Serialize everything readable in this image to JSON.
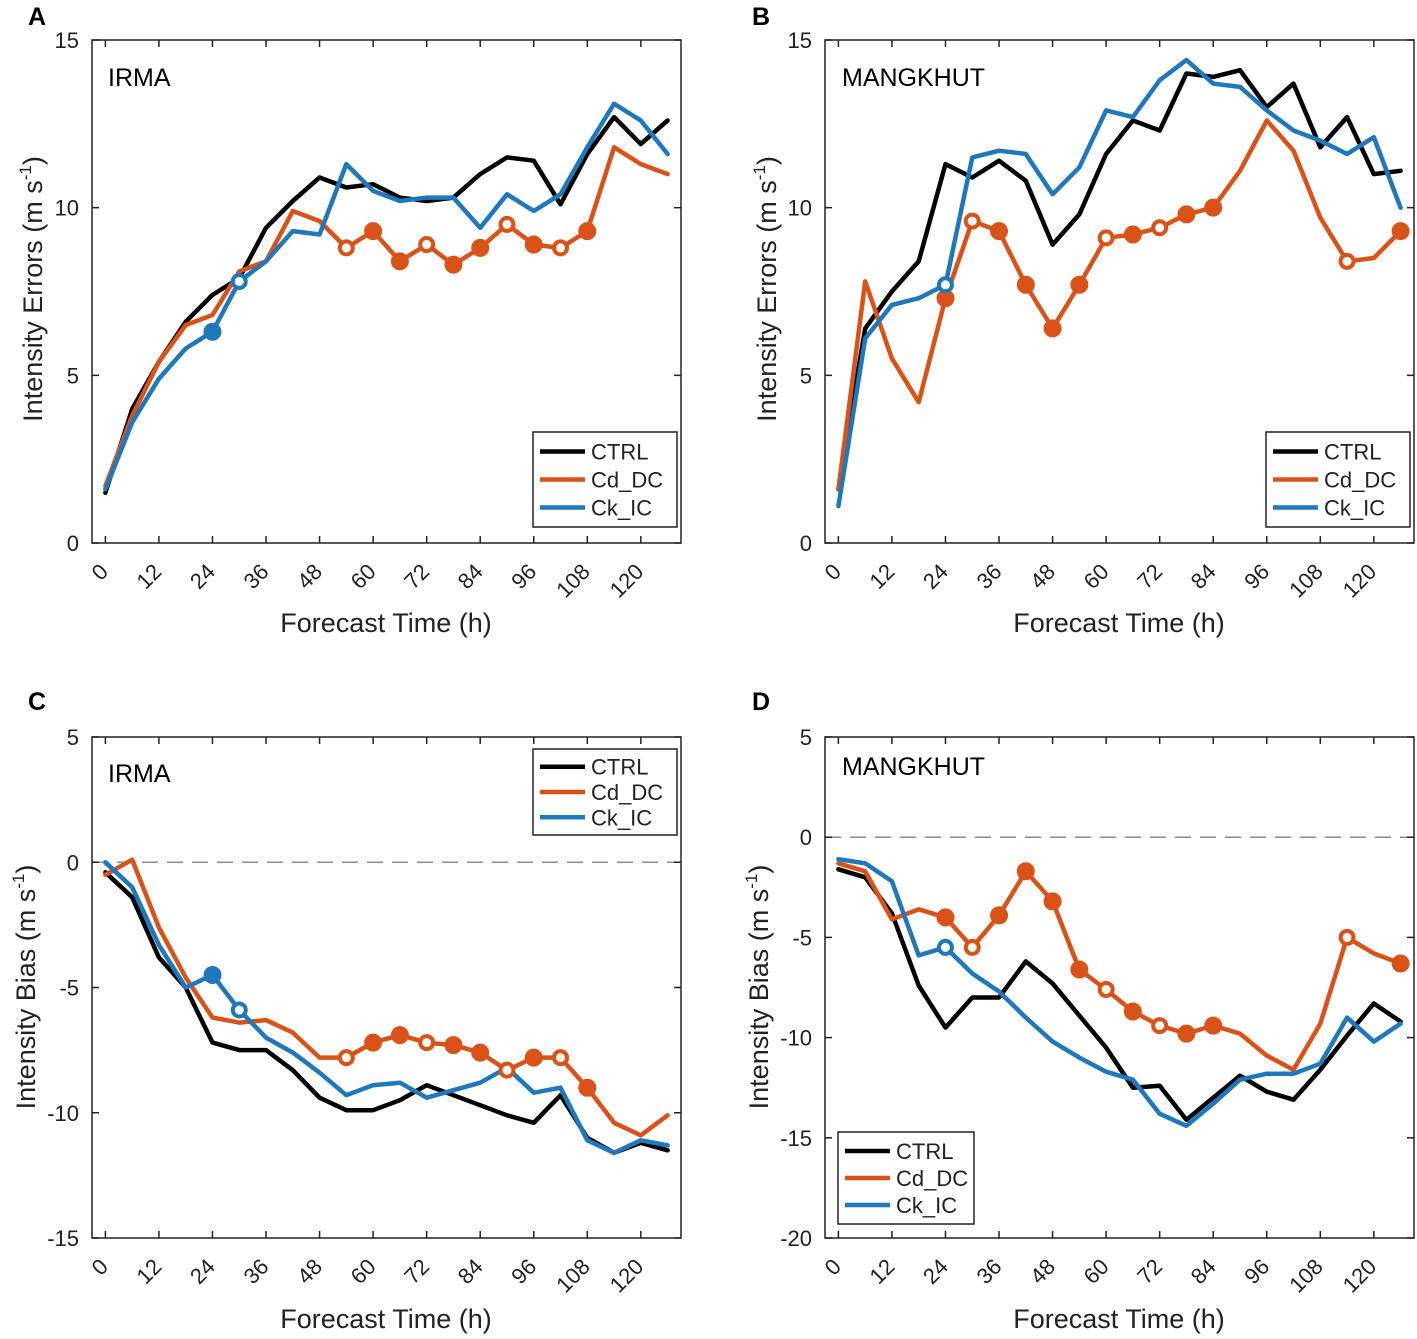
{
  "colors": {
    "CTRL": "#000000",
    "Cd_DC": "#d95319",
    "Ck_IC": "#1f77bc",
    "zero_line": "#8c8c8c"
  },
  "chart_data": [
    {
      "type": "line",
      "panel_letter": "A",
      "storm": "IRMA",
      "xlabel": "Forecast Time (h)",
      "ylabel": "Intensity Errors (m s",
      "ylabel_sup": "-1",
      "ylabel_close": ")",
      "xlim": [
        -3,
        129
      ],
      "ylim": [
        0,
        15
      ],
      "xticks": [
        0,
        12,
        24,
        36,
        48,
        60,
        72,
        84,
        96,
        108,
        120
      ],
      "yticks": [
        0,
        5,
        10,
        15
      ],
      "zero_line": false,
      "legend_position": "bottom-right",
      "series": [
        {
          "name": "CTRL",
          "x": [
            0,
            6,
            12,
            18,
            24,
            30,
            36,
            42,
            48,
            54,
            60,
            66,
            72,
            78,
            84,
            90,
            96,
            102,
            108,
            114,
            120,
            126
          ],
          "values": [
            1.5,
            4.0,
            5.4,
            6.6,
            7.4,
            7.9,
            9.4,
            10.2,
            10.9,
            10.6,
            10.7,
            10.3,
            10.2,
            10.3,
            11.0,
            11.5,
            11.4,
            10.1,
            11.6,
            12.7,
            11.9,
            12.6
          ]
        },
        {
          "name": "Cd_DC",
          "x": [
            0,
            6,
            12,
            18,
            24,
            30,
            36,
            42,
            48,
            54,
            60,
            66,
            72,
            78,
            84,
            90,
            96,
            102,
            108,
            114,
            120,
            126
          ],
          "values": [
            1.7,
            3.8,
            5.4,
            6.5,
            6.8,
            8.1,
            8.4,
            9.9,
            9.6,
            8.8,
            9.3,
            8.4,
            8.9,
            8.3,
            8.8,
            9.5,
            8.9,
            8.8,
            9.3,
            11.8,
            11.3,
            11.0
          ],
          "markers": [
            {
              "x": 54,
              "y": 8.8,
              "filled": false
            },
            {
              "x": 60,
              "y": 9.3,
              "filled": true
            },
            {
              "x": 66,
              "y": 8.4,
              "filled": true
            },
            {
              "x": 72,
              "y": 8.9,
              "filled": false
            },
            {
              "x": 78,
              "y": 8.3,
              "filled": true
            },
            {
              "x": 84,
              "y": 8.8,
              "filled": true
            },
            {
              "x": 90,
              "y": 9.5,
              "filled": false
            },
            {
              "x": 96,
              "y": 8.9,
              "filled": true
            },
            {
              "x": 102,
              "y": 8.8,
              "filled": false
            },
            {
              "x": 108,
              "y": 9.3,
              "filled": true
            }
          ]
        },
        {
          "name": "Ck_IC",
          "x": [
            0,
            6,
            12,
            18,
            24,
            30,
            36,
            42,
            48,
            54,
            60,
            66,
            72,
            78,
            84,
            90,
            96,
            102,
            108,
            114,
            120,
            126
          ],
          "values": [
            1.6,
            3.6,
            4.9,
            5.8,
            6.3,
            7.8,
            8.4,
            9.3,
            9.2,
            11.3,
            10.5,
            10.2,
            10.3,
            10.3,
            9.4,
            10.4,
            9.9,
            10.4,
            11.8,
            13.1,
            12.6,
            11.6
          ],
          "markers": [
            {
              "x": 24,
              "y": 6.3,
              "filled": true
            },
            {
              "x": 30,
              "y": 7.8,
              "filled": false
            }
          ]
        }
      ]
    },
    {
      "type": "line",
      "panel_letter": "B",
      "storm": "MANGKHUT",
      "xlabel": "Forecast Time (h)",
      "ylabel": "Intensity Errors (m s",
      "ylabel_sup": "-1",
      "ylabel_close": ")",
      "xlim": [
        -3,
        129
      ],
      "ylim": [
        0,
        15
      ],
      "xticks": [
        0,
        12,
        24,
        36,
        48,
        60,
        72,
        84,
        96,
        108,
        120
      ],
      "yticks": [
        0,
        5,
        10,
        15
      ],
      "zero_line": false,
      "legend_position": "bottom-right",
      "series": [
        {
          "name": "CTRL",
          "x": [
            0,
            6,
            12,
            18,
            24,
            30,
            36,
            42,
            48,
            54,
            60,
            66,
            72,
            78,
            84,
            90,
            96,
            102,
            108,
            114,
            120,
            126
          ],
          "values": [
            1.6,
            6.4,
            7.5,
            8.4,
            11.3,
            10.9,
            11.4,
            10.8,
            8.9,
            9.8,
            11.6,
            12.6,
            12.3,
            14.0,
            13.9,
            14.1,
            13.0,
            13.7,
            11.8,
            12.7,
            11.0,
            11.1
          ]
        },
        {
          "name": "Cd_DC",
          "x": [
            0,
            6,
            12,
            18,
            24,
            30,
            36,
            42,
            48,
            54,
            60,
            66,
            72,
            78,
            84,
            90,
            96,
            102,
            108,
            114,
            120,
            126
          ],
          "values": [
            1.6,
            7.8,
            5.5,
            4.2,
            7.3,
            9.6,
            9.3,
            7.7,
            6.4,
            7.7,
            9.1,
            9.2,
            9.4,
            9.8,
            10.0,
            11.1,
            12.6,
            11.7,
            9.7,
            8.4,
            8.5,
            9.3
          ],
          "markers": [
            {
              "x": 24,
              "y": 7.3,
              "filled": true
            },
            {
              "x": 30,
              "y": 9.6,
              "filled": false
            },
            {
              "x": 36,
              "y": 9.3,
              "filled": true
            },
            {
              "x": 42,
              "y": 7.7,
              "filled": true
            },
            {
              "x": 48,
              "y": 6.4,
              "filled": true
            },
            {
              "x": 54,
              "y": 7.7,
              "filled": true
            },
            {
              "x": 60,
              "y": 9.1,
              "filled": false
            },
            {
              "x": 66,
              "y": 9.2,
              "filled": true
            },
            {
              "x": 72,
              "y": 9.4,
              "filled": false
            },
            {
              "x": 78,
              "y": 9.8,
              "filled": true
            },
            {
              "x": 84,
              "y": 10.0,
              "filled": true
            },
            {
              "x": 114,
              "y": 8.4,
              "filled": false
            },
            {
              "x": 126,
              "y": 9.3,
              "filled": true
            }
          ]
        },
        {
          "name": "Ck_IC",
          "x": [
            0,
            6,
            12,
            18,
            24,
            30,
            36,
            42,
            48,
            54,
            60,
            66,
            72,
            78,
            84,
            90,
            96,
            102,
            108,
            114,
            120,
            126
          ],
          "values": [
            1.1,
            6.1,
            7.1,
            7.3,
            7.7,
            11.5,
            11.7,
            11.6,
            10.4,
            11.2,
            12.9,
            12.7,
            13.8,
            14.4,
            13.7,
            13.6,
            12.9,
            12.3,
            12.0,
            11.6,
            12.1,
            10.0
          ],
          "markers": [
            {
              "x": 24,
              "y": 7.7,
              "filled": false
            }
          ]
        }
      ]
    },
    {
      "type": "line",
      "panel_letter": "C",
      "storm": "IRMA",
      "xlabel": "Forecast Time (h)",
      "ylabel": "Intensity Bias (m s",
      "ylabel_sup": "-1",
      "ylabel_close": ")",
      "xlim": [
        -3,
        129
      ],
      "ylim": [
        -15,
        5
      ],
      "xticks": [
        0,
        12,
        24,
        36,
        48,
        60,
        72,
        84,
        96,
        108,
        120
      ],
      "yticks": [
        -15,
        -10,
        -5,
        0,
        5
      ],
      "zero_line": true,
      "legend_position": "top-right",
      "series": [
        {
          "name": "CTRL",
          "x": [
            0,
            6,
            12,
            18,
            24,
            30,
            36,
            42,
            48,
            54,
            60,
            66,
            72,
            78,
            84,
            90,
            96,
            102,
            108,
            114,
            120,
            126
          ],
          "values": [
            -0.4,
            -1.4,
            -3.8,
            -5.0,
            -7.2,
            -7.5,
            -7.5,
            -8.3,
            -9.4,
            -9.9,
            -9.9,
            -9.5,
            -8.9,
            -9.3,
            -9.7,
            -10.1,
            -10.4,
            -9.3,
            -11.0,
            -11.6,
            -11.2,
            -11.5
          ]
        },
        {
          "name": "Cd_DC",
          "x": [
            0,
            6,
            12,
            18,
            24,
            30,
            36,
            42,
            48,
            54,
            60,
            66,
            72,
            78,
            84,
            90,
            96,
            102,
            108,
            114,
            120,
            126
          ],
          "values": [
            -0.5,
            0.1,
            -2.6,
            -4.6,
            -6.2,
            -6.4,
            -6.3,
            -6.8,
            -7.8,
            -7.8,
            -7.2,
            -6.9,
            -7.2,
            -7.3,
            -7.6,
            -8.3,
            -7.8,
            -7.8,
            -9.0,
            -10.4,
            -10.9,
            -10.1
          ],
          "markers": [
            {
              "x": 54,
              "y": -7.8,
              "filled": false
            },
            {
              "x": 60,
              "y": -7.2,
              "filled": true
            },
            {
              "x": 66,
              "y": -6.9,
              "filled": true
            },
            {
              "x": 72,
              "y": -7.2,
              "filled": false
            },
            {
              "x": 78,
              "y": -7.3,
              "filled": true
            },
            {
              "x": 84,
              "y": -7.6,
              "filled": true
            },
            {
              "x": 90,
              "y": -8.3,
              "filled": false
            },
            {
              "x": 96,
              "y": -7.8,
              "filled": true
            },
            {
              "x": 102,
              "y": -7.8,
              "filled": false
            },
            {
              "x": 108,
              "y": -9.0,
              "filled": true
            }
          ]
        },
        {
          "name": "Ck_IC",
          "x": [
            0,
            6,
            12,
            18,
            24,
            30,
            36,
            42,
            48,
            54,
            60,
            66,
            72,
            78,
            84,
            90,
            96,
            102,
            108,
            114,
            120,
            126
          ],
          "values": [
            0.0,
            -1.0,
            -3.3,
            -5.0,
            -4.5,
            -5.9,
            -7.0,
            -7.6,
            -8.4,
            -9.3,
            -8.9,
            -8.8,
            -9.4,
            -9.1,
            -8.8,
            -8.2,
            -9.2,
            -9.0,
            -11.1,
            -11.6,
            -11.1,
            -11.3
          ],
          "markers": [
            {
              "x": 24,
              "y": -4.5,
              "filled": true
            },
            {
              "x": 30,
              "y": -5.9,
              "filled": false
            }
          ]
        }
      ]
    },
    {
      "type": "line",
      "panel_letter": "D",
      "storm": "MANGKHUT",
      "xlabel": "Forecast Time (h)",
      "ylabel": "Intensity Bias (m s",
      "ylabel_sup": "-1",
      "ylabel_close": ")",
      "xlim": [
        -3,
        129
      ],
      "ylim": [
        -20,
        5
      ],
      "xticks": [
        0,
        12,
        24,
        36,
        48,
        60,
        72,
        84,
        96,
        108,
        120
      ],
      "yticks": [
        -20,
        -15,
        -10,
        -5,
        0,
        5
      ],
      "zero_line": true,
      "legend_position": "bottom-left",
      "series": [
        {
          "name": "CTRL",
          "x": [
            0,
            6,
            12,
            18,
            24,
            30,
            36,
            42,
            48,
            54,
            60,
            66,
            72,
            78,
            84,
            90,
            96,
            102,
            108,
            114,
            120,
            126
          ],
          "values": [
            -1.6,
            -2.0,
            -3.8,
            -7.4,
            -9.5,
            -8.0,
            -8.0,
            -6.2,
            -7.3,
            -8.9,
            -10.5,
            -12.5,
            -12.4,
            -14.1,
            -13.0,
            -11.9,
            -12.7,
            -13.1,
            -11.6,
            -9.9,
            -8.3,
            -9.2
          ]
        },
        {
          "name": "Cd_DC",
          "x": [
            0,
            6,
            12,
            18,
            24,
            30,
            36,
            42,
            48,
            54,
            60,
            66,
            72,
            78,
            84,
            90,
            96,
            102,
            108,
            114,
            120,
            126
          ],
          "values": [
            -1.3,
            -1.7,
            -4.1,
            -3.6,
            -4.0,
            -5.5,
            -3.9,
            -1.7,
            -3.2,
            -6.6,
            -7.6,
            -8.7,
            -9.4,
            -9.8,
            -9.4,
            -9.8,
            -10.9,
            -11.6,
            -9.3,
            -5.0,
            -5.8,
            -6.3
          ],
          "markers": [
            {
              "x": 24,
              "y": -4.0,
              "filled": true
            },
            {
              "x": 30,
              "y": -5.5,
              "filled": false
            },
            {
              "x": 36,
              "y": -3.9,
              "filled": true
            },
            {
              "x": 42,
              "y": -1.7,
              "filled": true
            },
            {
              "x": 48,
              "y": -3.2,
              "filled": true
            },
            {
              "x": 54,
              "y": -6.6,
              "filled": true
            },
            {
              "x": 60,
              "y": -7.6,
              "filled": false
            },
            {
              "x": 66,
              "y": -8.7,
              "filled": true
            },
            {
              "x": 72,
              "y": -9.4,
              "filled": false
            },
            {
              "x": 78,
              "y": -9.8,
              "filled": true
            },
            {
              "x": 84,
              "y": -9.4,
              "filled": true
            },
            {
              "x": 114,
              "y": -5.0,
              "filled": false
            },
            {
              "x": 126,
              "y": -6.3,
              "filled": true
            }
          ]
        },
        {
          "name": "Ck_IC",
          "x": [
            0,
            6,
            12,
            18,
            24,
            30,
            36,
            42,
            48,
            54,
            60,
            66,
            72,
            78,
            84,
            90,
            96,
            102,
            108,
            114,
            120,
            126
          ],
          "values": [
            -1.1,
            -1.3,
            -2.2,
            -5.9,
            -5.5,
            -6.8,
            -7.7,
            -9.0,
            -10.2,
            -11.0,
            -11.7,
            -12.1,
            -13.8,
            -14.4,
            -13.3,
            -12.1,
            -11.8,
            -11.8,
            -11.3,
            -9.0,
            -10.2,
            -9.3
          ],
          "markers": [
            {
              "x": 24,
              "y": -5.5,
              "filled": false
            }
          ]
        }
      ]
    }
  ]
}
